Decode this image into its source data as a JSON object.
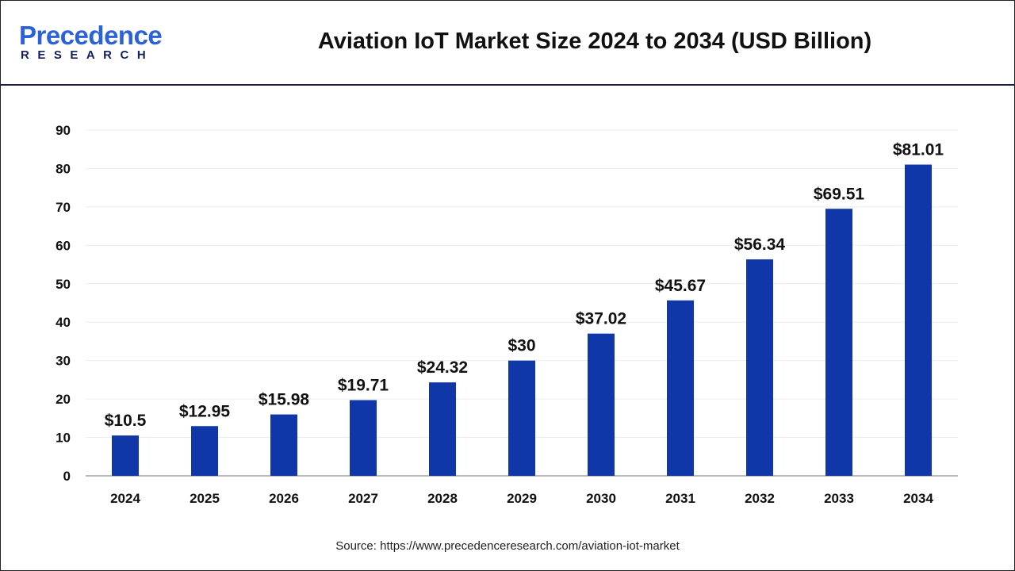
{
  "header": {
    "logo_text_top": "Precedence",
    "logo_text_bottom": "RESEARCH",
    "title": "Aviation IoT Market Size 2024 to 2034 (USD Billion)"
  },
  "chart_data": {
    "type": "bar",
    "title": "Aviation IoT Market Size 2024 to 2034 (USD Billion)",
    "categories": [
      "2024",
      "2025",
      "2026",
      "2027",
      "2028",
      "2029",
      "2030",
      "2031",
      "2032",
      "2033",
      "2034"
    ],
    "values": [
      10.5,
      12.95,
      15.98,
      19.71,
      24.32,
      30,
      37.02,
      45.67,
      56.34,
      69.51,
      81.01
    ],
    "data_labels": [
      "$10.5",
      "$12.95",
      "$15.98",
      "$19.71",
      "$24.32",
      "$30",
      "$37.02",
      "$45.67",
      "$56.34",
      "$69.51",
      "$81.01"
    ],
    "ylim": [
      0,
      90
    ],
    "yticks": [
      0,
      10,
      20,
      30,
      40,
      50,
      60,
      70,
      80,
      90
    ],
    "xlabel": "",
    "ylabel": "",
    "grid": true,
    "bar_color": "#0f37a8"
  },
  "source": "Source: https://www.precedenceresearch.com/aviation-iot-market"
}
